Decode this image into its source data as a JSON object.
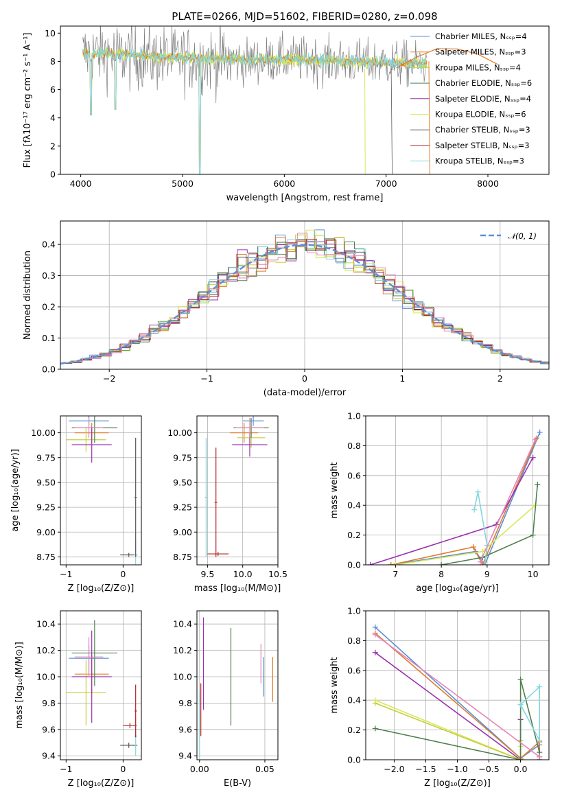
{
  "colors": {
    "chabrier_miles": "#5b8fd6",
    "salpeter_miles": "#e07b2c",
    "kroupa_miles": "#c6cf3a",
    "chabrier_elodie": "#4f7f4f",
    "salpeter_elodie": "#9a32b0",
    "kroupa_elodie": "#d8e85a",
    "chabrier_stelib": "#555555",
    "salpeter_stelib": "#b22020",
    "kroupa_stelib": "#86d6df",
    "pink": "#e486b8",
    "gauss": "#5b8fd6"
  },
  "chart_data": [
    {
      "id": "spectrum",
      "type": "line",
      "title": "PLATE=0266, MJD=51602, FIBERID=0280, z=0.098",
      "xlabel": "wavelength [Angstrom, rest frame]",
      "ylabel": "Flux [fλ10⁻¹⁷ erg cm⁻² s⁻¹ A⁻¹]",
      "xlim": [
        3800,
        8600
      ],
      "ylim": [
        0,
        10.5
      ],
      "xticks": [
        4000,
        5000,
        6000,
        7000,
        8000
      ],
      "yticks": [
        0,
        2,
        4,
        6,
        8,
        10
      ],
      "legend_position": "upper right",
      "legend": [
        {
          "label": "Chabrier MILES, N_SSP=4",
          "color": "chabrier_miles"
        },
        {
          "label": "Salpeter MILES, N_SSP=3",
          "color": "salpeter_miles"
        },
        {
          "label": "Kroupa MILES, N_SSP=4",
          "color": "kroupa_miles"
        },
        {
          "label": "Chabrier ELODIE, N_SSP=6",
          "color": "chabrier_elodie"
        },
        {
          "label": "Salpeter ELODIE, N_SSP=4",
          "color": "salpeter_elodie"
        },
        {
          "label": "Kroupa ELODIE, N_SSP=6",
          "color": "kroupa_elodie"
        },
        {
          "label": "Chabrier STELIB, N_SSP=3",
          "color": "chabrier_stelib"
        },
        {
          "label": "Salpeter STELIB, N_SSP=3",
          "color": "salpeter_stelib"
        },
        {
          "label": "Kroupa STELIB, N_SSP=3",
          "color": "kroupa_stelib"
        }
      ],
      "data_noise": {
        "x": [
          4000,
          4200,
          4400,
          4600,
          4800,
          5000,
          5200,
          5400,
          5600,
          5800,
          6000,
          6200,
          6400,
          6600,
          6800,
          7000,
          7200,
          7400
        ],
        "y": [
          8.5,
          8.6,
          8.4,
          8.3,
          8.2,
          8.2,
          8.1,
          8.1,
          8.0,
          8.1,
          8.2,
          8.1,
          8.0,
          8.0,
          7.9,
          7.9,
          7.8,
          7.7
        ]
      },
      "model_continuum": {
        "x": [
          4000,
          4100,
          4200,
          4400,
          4600,
          4800,
          5000,
          5200,
          5400,
          5600,
          5800,
          6000,
          6200,
          6400,
          6600,
          6800,
          7000,
          7200,
          7400
        ],
        "y": [
          8.8,
          8.4,
          8.6,
          8.5,
          8.4,
          8.3,
          8.3,
          8.2,
          8.2,
          8.1,
          8.1,
          8.2,
          8.1,
          8.1,
          8.0,
          8.0,
          7.9,
          7.9,
          7.8
        ]
      },
      "absorption_lines": [
        {
          "x": 4100,
          "y": 4.2
        },
        {
          "x": 4340,
          "y": 4.6
        },
        {
          "x": 5170,
          "y": 0.0
        }
      ],
      "tail": {
        "x": [
          7100,
          7300,
          7500,
          7700,
          7900,
          8100
        ],
        "y": [
          7.7,
          8.2,
          8.6,
          9.0,
          8.4,
          7.9
        ]
      }
    },
    {
      "id": "residuals",
      "type": "area",
      "xlabel": "(data-model)/error",
      "ylabel": "Normed distribution",
      "xlim": [
        -2.5,
        2.5
      ],
      "ylim": [
        0,
        0.475
      ],
      "xticks": [
        -2,
        -1,
        0,
        1,
        2
      ],
      "yticks": [
        0.0,
        0.1,
        0.2,
        0.3,
        0.4
      ],
      "grid": true,
      "legend_position": "upper right",
      "legend": [
        {
          "label": "𝒩(0, 1)",
          "color": "gauss"
        }
      ],
      "bin_width": 0.1
    },
    {
      "id": "age_vs_Z",
      "type": "scatter",
      "xlabel": "Z [log₁₀(Z/Z⊙)]",
      "ylabel": "age  [log₁₀(age/yr)]",
      "xlim": [
        -1.1,
        0.32
      ],
      "ylim": [
        8.67,
        10.17
      ],
      "xticks": [
        -1,
        0
      ],
      "yticks": [
        8.75,
        9.0,
        9.25,
        9.5,
        9.75,
        10.0
      ],
      "grid": true,
      "points": [
        {
          "x": -0.6,
          "y": 10.12,
          "xerr": 0.35,
          "yerr": 0.05,
          "color": "chabrier_miles"
        },
        {
          "x": -0.55,
          "y": 10.0,
          "xerr": 0.3,
          "yerr": 0.1,
          "color": "salpeter_miles"
        },
        {
          "x": -0.65,
          "y": 9.93,
          "xerr": 0.35,
          "yerr": 0.12,
          "color": "kroupa_miles"
        },
        {
          "x": -0.5,
          "y": 10.05,
          "xerr": 0.4,
          "yerr": 0.15,
          "color": "chabrier_elodie"
        },
        {
          "x": -0.55,
          "y": 9.88,
          "xerr": 0.35,
          "yerr": 0.18,
          "color": "salpeter_elodie"
        },
        {
          "x": -0.6,
          "y": 10.05,
          "xerr": 0.25,
          "yerr": 0.1,
          "color": "pink"
        },
        {
          "x": 0.1,
          "y": 8.77,
          "xerr": 0.15,
          "yerr": 0.02,
          "color": "chabrier_stelib"
        },
        {
          "x": 0.22,
          "y": 8.77,
          "xerr": 0.03,
          "yerr": 0.15,
          "color": "kroupa_stelib"
        },
        {
          "x": 0.22,
          "y": 9.35,
          "xerr": 0.02,
          "yerr": 0.6,
          "color": "chabrier_stelib"
        }
      ]
    },
    {
      "id": "age_vs_mass",
      "type": "scatter",
      "xlabel": "mass [log₁₀(M/M⊙)]",
      "xlim": [
        9.35,
        10.5
      ],
      "ylim": [
        8.67,
        10.17
      ],
      "xticks": [
        9.5,
        10.0,
        10.5
      ],
      "yticks": [
        8.75,
        9.0,
        9.25,
        9.5,
        9.75,
        10.0
      ],
      "grid": true,
      "points": [
        {
          "x": 10.15,
          "y": 10.12,
          "xerr": 0.15,
          "yerr": 0.05,
          "color": "chabrier_miles"
        },
        {
          "x": 10.02,
          "y": 10.0,
          "xerr": 0.2,
          "yerr": 0.1,
          "color": "salpeter_miles"
        },
        {
          "x": 10.12,
          "y": 9.95,
          "xerr": 0.2,
          "yerr": 0.1,
          "color": "kroupa_miles"
        },
        {
          "x": 10.12,
          "y": 10.05,
          "xerr": 0.25,
          "yerr": 0.1,
          "color": "chabrier_elodie"
        },
        {
          "x": 10.1,
          "y": 9.88,
          "xerr": 0.25,
          "yerr": 0.12,
          "color": "salpeter_elodie"
        },
        {
          "x": 10.1,
          "y": 10.05,
          "xerr": 0.2,
          "yerr": 0.1,
          "color": "pink"
        },
        {
          "x": 9.62,
          "y": 9.3,
          "xerr": 0.02,
          "yerr": 0.55,
          "color": "salpeter_stelib"
        },
        {
          "x": 9.48,
          "y": 9.35,
          "xerr": 0.02,
          "yerr": 0.6,
          "color": "kroupa_stelib"
        },
        {
          "x": 9.65,
          "y": 8.78,
          "xerr": 0.15,
          "yerr": 0.02,
          "color": "salpeter_stelib"
        }
      ]
    },
    {
      "id": "mass_weight_vs_age",
      "type": "line",
      "xlabel": "age  [log₁₀(age/yr)]",
      "ylabel": "mass weight",
      "xlim": [
        6.35,
        10.35
      ],
      "ylim": [
        0,
        1.0
      ],
      "xticks": [
        7,
        8,
        9,
        10
      ],
      "yticks": [
        0.0,
        0.2,
        0.4,
        0.6,
        0.8,
        1.0
      ],
      "grid": true,
      "series": [
        {
          "color": "chabrier_miles",
          "x": [
            6.9,
            8.75,
            8.95,
            10.15
          ],
          "y": [
            0.0,
            0.09,
            0.0,
            0.89
          ]
        },
        {
          "color": "salpeter_miles",
          "x": [
            6.9,
            8.7,
            8.9,
            10.08
          ],
          "y": [
            0.0,
            0.12,
            0.0,
            0.85
          ]
        },
        {
          "color": "salpeter_elodie",
          "x": [
            6.45,
            9.2,
            10.0
          ],
          "y": [
            0.0,
            0.27,
            0.72
          ]
        },
        {
          "color": "kroupa_elodie",
          "x": [
            7.0,
            8.9,
            10.05
          ],
          "y": [
            0.0,
            0.09,
            0.4
          ]
        },
        {
          "color": "chabrier_elodie",
          "x": [
            8.0,
            8.9,
            10.0,
            10.1
          ],
          "y": [
            0.0,
            0.05,
            0.2,
            0.54
          ]
        },
        {
          "color": "kroupa_stelib",
          "x": [
            8.72,
            8.8,
            9.0,
            8.95
          ],
          "y": [
            0.37,
            0.49,
            0.13,
            0.0
          ]
        },
        {
          "color": "pink",
          "x": [
            8.85,
            10.05
          ],
          "y": [
            0.02,
            0.84
          ]
        }
      ]
    },
    {
      "id": "mass_vs_Z",
      "type": "scatter",
      "xlabel": "Z [log₁₀(Z/Z⊙)]",
      "ylabel": "mass [log₁₀(M/M⊙)]",
      "xlim": [
        -1.1,
        0.32
      ],
      "ylim": [
        9.37,
        10.5
      ],
      "xticks": [
        -1,
        0
      ],
      "yticks": [
        9.4,
        9.6,
        9.8,
        10.0,
        10.2,
        10.4
      ],
      "grid": true,
      "points": [
        {
          "x": -0.6,
          "y": 10.14,
          "xerr": 0.35,
          "yerr": 0.1,
          "color": "chabrier_miles"
        },
        {
          "x": -0.55,
          "y": 10.02,
          "xerr": 0.3,
          "yerr": 0.15,
          "color": "salpeter_miles"
        },
        {
          "x": -0.65,
          "y": 9.88,
          "xerr": 0.35,
          "yerr": 0.25,
          "color": "kroupa_miles"
        },
        {
          "x": -0.5,
          "y": 10.18,
          "xerr": 0.4,
          "yerr": 0.25,
          "color": "chabrier_elodie"
        },
        {
          "x": -0.55,
          "y": 10.0,
          "xerr": 0.35,
          "yerr": 0.35,
          "color": "salpeter_elodie"
        },
        {
          "x": -0.6,
          "y": 10.15,
          "xerr": 0.25,
          "yerr": 0.15,
          "color": "pink"
        },
        {
          "x": 0.12,
          "y": 9.63,
          "xerr": 0.12,
          "yerr": 0.02,
          "color": "salpeter_stelib"
        },
        {
          "x": 0.1,
          "y": 9.48,
          "xerr": 0.15,
          "yerr": 0.02,
          "color": "chabrier_stelib"
        },
        {
          "x": 0.22,
          "y": 9.55,
          "xerr": 0.03,
          "yerr": 0.15,
          "color": "kroupa_stelib"
        },
        {
          "x": 0.22,
          "y": 9.74,
          "xerr": 0.02,
          "yerr": 0.2,
          "color": "salpeter_stelib"
        }
      ]
    },
    {
      "id": "mass_vs_EBV",
      "type": "scatter",
      "xlabel": "E(B-V)",
      "xlim": [
        -0.002,
        0.06
      ],
      "ylim": [
        9.37,
        10.5
      ],
      "xticks": [
        0.0,
        0.05
      ],
      "yticks": [
        9.4,
        9.6,
        9.8,
        10.0,
        10.2,
        10.4
      ],
      "grid": true,
      "points": [
        {
          "x": 0.0,
          "y": 9.64,
          "yerr": 0.25,
          "color": "kroupa_stelib"
        },
        {
          "x": 0.001,
          "y": 9.75,
          "yerr": 0.2,
          "color": "salpeter_stelib"
        },
        {
          "x": 0.003,
          "y": 10.1,
          "yerr": 0.35,
          "color": "salpeter_elodie"
        },
        {
          "x": 0.024,
          "y": 10.0,
          "yerr": 0.37,
          "color": "chabrier_elodie"
        },
        {
          "x": 0.047,
          "y": 10.1,
          "yerr": 0.15,
          "color": "pink"
        },
        {
          "x": 0.049,
          "y": 10.0,
          "yerr": 0.15,
          "color": "chabrier_miles"
        },
        {
          "x": 0.056,
          "y": 9.98,
          "yerr": 0.17,
          "color": "salpeter_miles"
        }
      ]
    },
    {
      "id": "mass_weight_vs_Z",
      "type": "line",
      "xlabel": "Z [log₁₀(Z/Z⊙)]",
      "ylabel": "mass weight",
      "xlim": [
        -2.45,
        0.45
      ],
      "ylim": [
        0,
        1.0
      ],
      "xticks": [
        -2.0,
        -1.5,
        -1.0,
        -0.5,
        0.0
      ],
      "yticks": [
        0.0,
        0.2,
        0.4,
        0.6,
        0.8,
        1.0
      ],
      "grid": true,
      "series": [
        {
          "color": "chabrier_miles",
          "x": [
            -2.3,
            0.0,
            0.3,
            0.3
          ],
          "y": [
            0.89,
            0.01,
            0.1,
            0.0
          ]
        },
        {
          "color": "salpeter_miles",
          "x": [
            -2.3,
            0.0,
            0.3,
            0.3
          ],
          "y": [
            0.85,
            0.01,
            0.12,
            0.0
          ]
        },
        {
          "color": "salpeter_elodie",
          "x": [
            -2.3,
            0.0,
            0.0
          ],
          "y": [
            0.72,
            0.0,
            0.27
          ]
        },
        {
          "color": "kroupa_elodie",
          "x": [
            -2.3,
            0.0,
            0.0
          ],
          "y": [
            0.4,
            0.0,
            0.09
          ]
        },
        {
          "color": "kroupa_miles",
          "x": [
            -2.3,
            0.0,
            0.0
          ],
          "y": [
            0.38,
            0.0,
            0.13
          ]
        },
        {
          "color": "chabrier_elodie",
          "x": [
            -2.3,
            0.0,
            0.0,
            0.3,
            0.3
          ],
          "y": [
            0.21,
            0.0,
            0.54,
            0.05,
            0.02
          ]
        },
        {
          "color": "kroupa_stelib",
          "x": [
            0.0,
            0.3,
            0.3,
            0.0
          ],
          "y": [
            0.37,
            0.49,
            0.13,
            0.37
          ]
        },
        {
          "color": "pink",
          "x": [
            -2.3,
            0.3
          ],
          "y": [
            0.84,
            0.02
          ]
        }
      ]
    }
  ]
}
